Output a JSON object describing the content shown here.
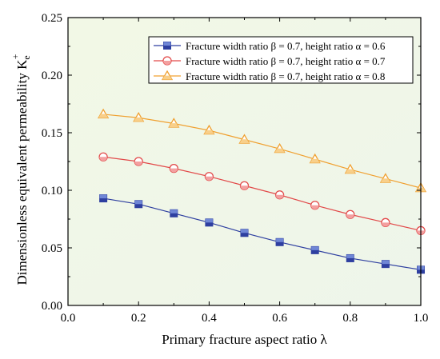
{
  "chart_data": {
    "type": "line",
    "title": "",
    "xlabel": "Primary fracture aspect ratio λ",
    "ylabel": {
      "main": "Dimensionless equivalent permeability K",
      "subscript": "e",
      "superscript": "+"
    },
    "xlim": [
      0.0,
      1.0
    ],
    "ylim": [
      0.0,
      0.25
    ],
    "x_ticks": [
      "0.0",
      "0.2",
      "0.4",
      "0.6",
      "0.8",
      "1.0"
    ],
    "y_ticks": [
      "0.00",
      "0.05",
      "0.10",
      "0.15",
      "0.20",
      "0.25"
    ],
    "grid": false,
    "legend_position": "top-right",
    "x": [
      0.1,
      0.2,
      0.3,
      0.4,
      0.5,
      0.6,
      0.7,
      0.8,
      0.9,
      1.0
    ],
    "series": [
      {
        "name": "Fracture width ratio β = 0.7, height ratio α = 0.6",
        "values": [
          0.093,
          0.088,
          0.08,
          0.072,
          0.063,
          0.055,
          0.048,
          0.041,
          0.036,
          0.031
        ],
        "color": "#2e3fa0",
        "fill": "#6f86d6",
        "marker": "square"
      },
      {
        "name": "Fracture width ratio β = 0.7, height ratio α = 0.7",
        "values": [
          0.129,
          0.125,
          0.119,
          0.112,
          0.104,
          0.096,
          0.087,
          0.079,
          0.072,
          0.065
        ],
        "color": "#e24a4a",
        "fill": "#f3a0a0",
        "marker": "circle"
      },
      {
        "name": "Fracture width ratio β = 0.7, height ratio α = 0.8",
        "values": [
          0.166,
          0.163,
          0.158,
          0.152,
          0.144,
          0.136,
          0.127,
          0.118,
          0.11,
          0.102
        ],
        "color": "#f0a030",
        "fill": "#f8cf8a",
        "marker": "triangle"
      }
    ]
  }
}
